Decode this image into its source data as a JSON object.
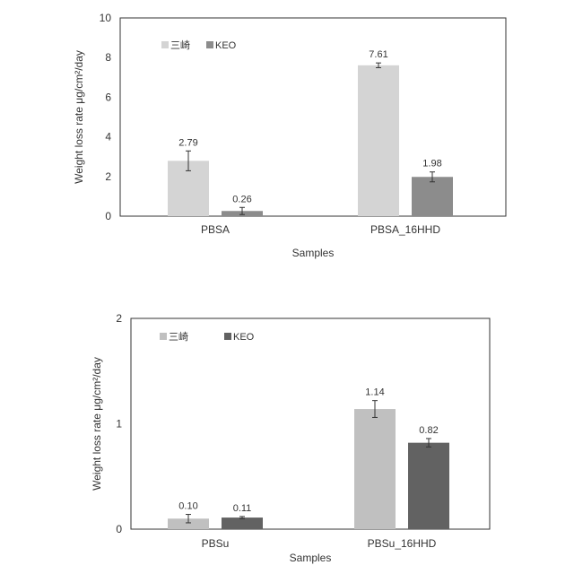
{
  "chart_data": [
    {
      "type": "bar",
      "categories": [
        "PBSA",
        "PBSA_16HHD"
      ],
      "series": [
        {
          "name": "三崎",
          "values": [
            2.79,
            7.61
          ],
          "errors": [
            0.5,
            0.12
          ],
          "color": "#d4d4d4"
        },
        {
          "name": "KEO",
          "values": [
            0.26,
            1.98
          ],
          "errors": [
            0.18,
            0.25
          ],
          "color": "#8c8c8c"
        }
      ],
      "data_labels": [
        [
          "2.79",
          "7.61"
        ],
        [
          "0.26",
          "1.98"
        ]
      ],
      "xlabel": "Samples",
      "ylabel": "Weight loss rate μg/cm²/day",
      "ylim": [
        0,
        10
      ],
      "yticks": [
        "0",
        "2",
        "4",
        "6",
        "8",
        "10"
      ],
      "grid": false,
      "legend_position": "top-left"
    },
    {
      "type": "bar",
      "categories": [
        "PBSu",
        "PBSu_16HHD"
      ],
      "series": [
        {
          "name": "三崎",
          "values": [
            0.1,
            1.14
          ],
          "errors": [
            0.04,
            0.08
          ],
          "color": "#c0c0c0"
        },
        {
          "name": "KEO",
          "values": [
            0.11,
            0.82
          ],
          "errors": [
            0.01,
            0.04
          ],
          "color": "#626262"
        }
      ],
      "data_labels": [
        [
          "0.10",
          "1.14"
        ],
        [
          "0.11",
          "0.82"
        ]
      ],
      "xlabel": "Samples",
      "ylabel": "Weight loss rate μg/cm²/day",
      "ylim": [
        0,
        2
      ],
      "yticks": [
        "0",
        "1",
        "2"
      ],
      "grid": false,
      "legend_position": "top-left"
    }
  ]
}
